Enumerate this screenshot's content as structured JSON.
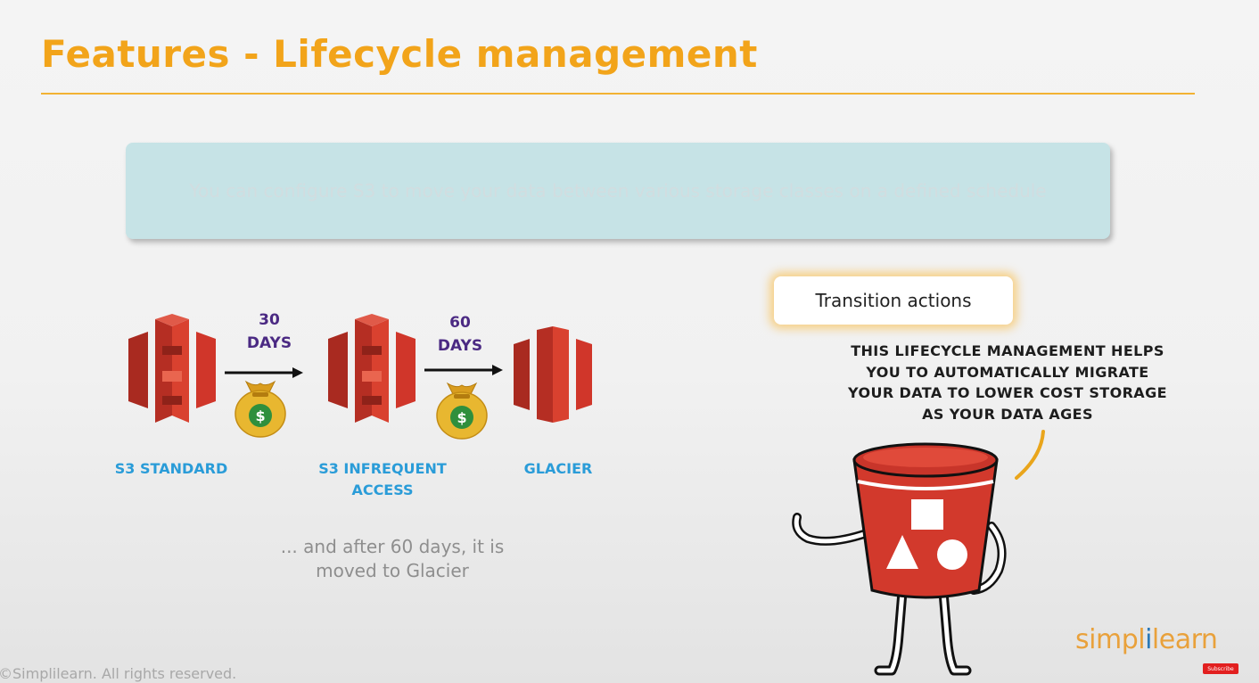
{
  "title": "Features - Lifecycle management",
  "intro": "You can configure S3 to move your data between various storage classes on a defined schedule",
  "transition_label": "Transition actions",
  "flow": {
    "storage_classes": [
      {
        "line1": "S3 STANDARD",
        "line2": ""
      },
      {
        "line1": "S3  INFREQUENT",
        "line2": "ACCESS"
      },
      {
        "line1": "GLACIER",
        "line2": ""
      }
    ],
    "transitions": [
      {
        "num": "30",
        "unit": "DAYS"
      },
      {
        "num": "60",
        "unit": "DAYS"
      }
    ],
    "money_symbol": "$"
  },
  "bubble": {
    "lines": [
      "THIS LIFECYCLE MANAGEMENT HELPS",
      "YOU TO AUTOMATICALLY MIGRATE",
      "YOUR DATA TO LOWER COST STORAGE",
      "AS YOUR DATA AGES"
    ]
  },
  "note": {
    "lines": [
      "... and after 60 days, it is",
      "moved to Glacier"
    ]
  },
  "footer": "©Simplilearn. All rights reserved.",
  "brand": {
    "part1": "simpl",
    "part2": "i",
    "part3": "learn"
  },
  "subscribe": "Subscribe",
  "colors": {
    "title": "#f2a41a",
    "rule": "#f2b233",
    "intro_box": "#c6e3e6",
    "s3_red": "#d0362a",
    "days_text": "#4b2a83",
    "class_label": "#2a9cd8",
    "money_bag": "#e8b730",
    "brand_orange": "#e9a13b",
    "brand_blue": "#2a78b6"
  },
  "icons": [
    "s3-standard-icon",
    "s3-infrequent-access-icon",
    "glacier-icon",
    "arrow-right-icon",
    "money-bag-icon",
    "s3-bucket-character"
  ]
}
